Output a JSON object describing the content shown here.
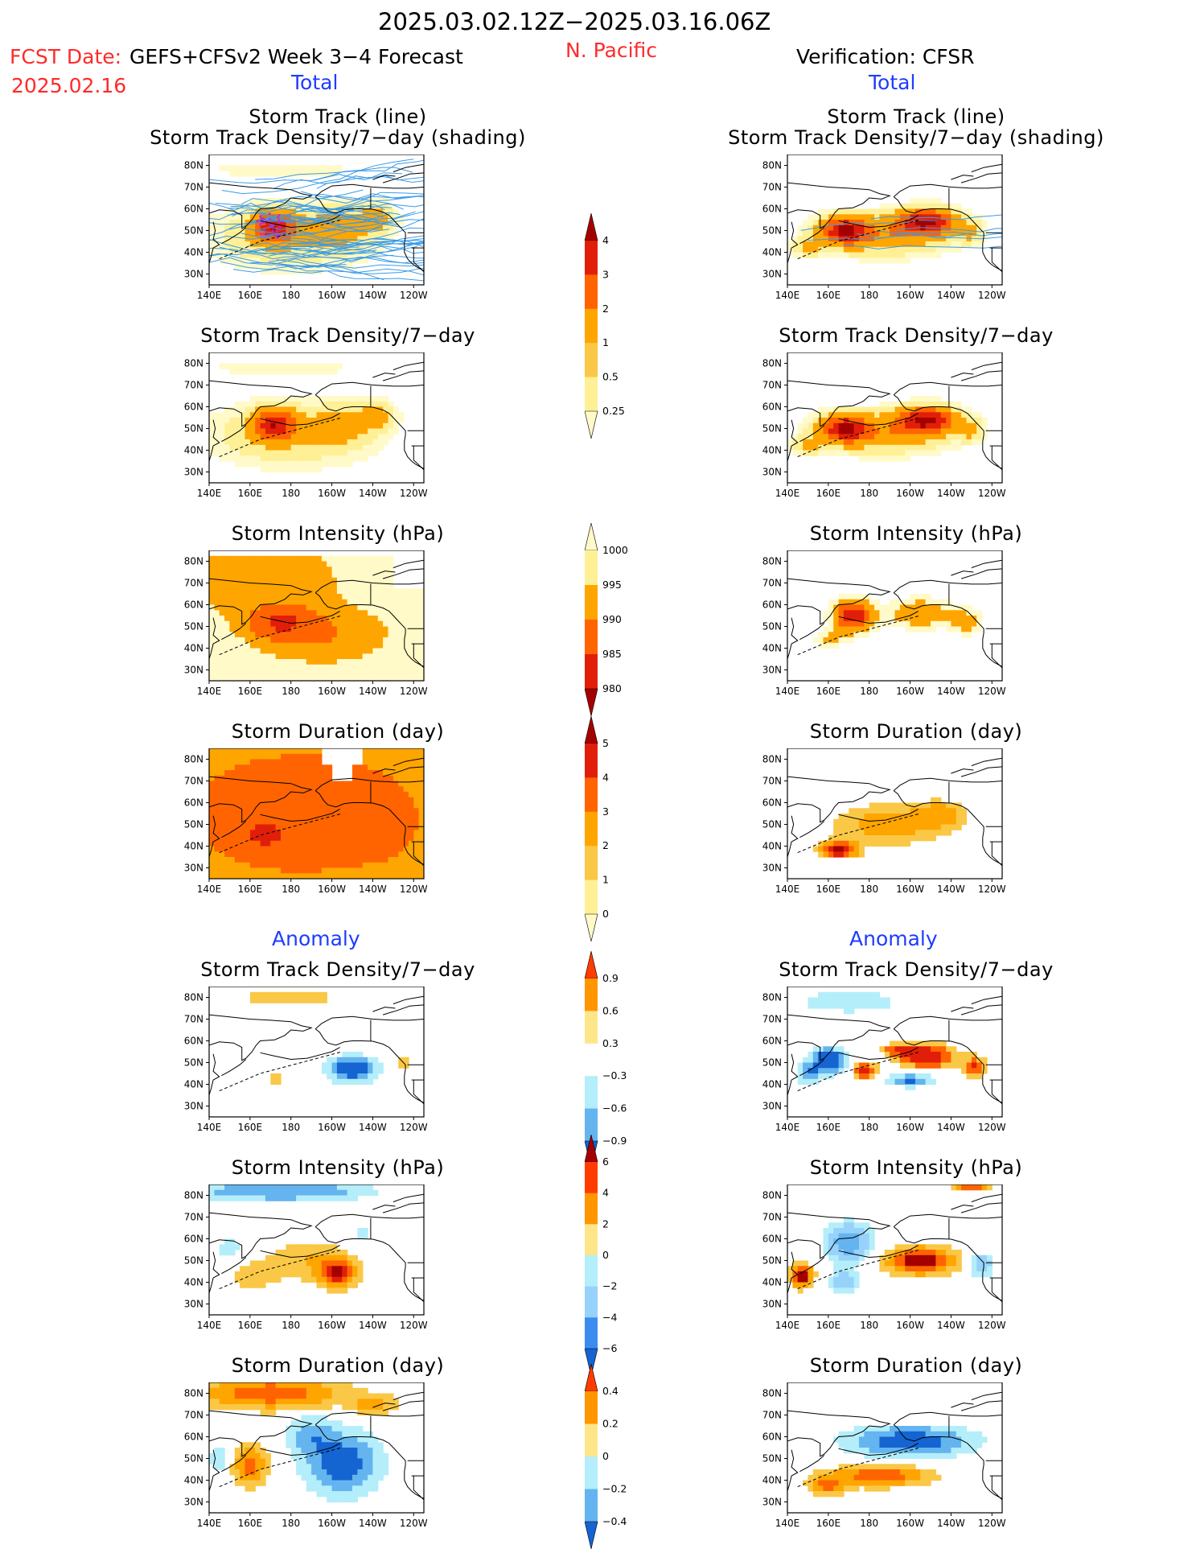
{
  "header": {
    "date_range": "2025.03.02.12Z−2025.03.16.06Z",
    "fcst_label": "FCST Date:",
    "model_label": "GEFS+CFSv2 Week 3−4 Forecast",
    "fcst_date": "2025.02.16",
    "region": "N. Pacific",
    "verification": "Verification: CFSR",
    "total_left": "Total",
    "total_right": "Total",
    "anomaly_left": "Anomaly",
    "anomaly_right": "Anomaly"
  },
  "axes": {
    "lat_labels": [
      "80N",
      "70N",
      "60N",
      "50N",
      "40N",
      "30N"
    ],
    "lon_labels": [
      "140E",
      "160E",
      "180",
      "160W",
      "140W",
      "120W"
    ]
  },
  "panels": {
    "left": [
      {
        "title1": "Storm Track (line)",
        "title2": "Storm Track Density/7−day (shading)",
        "field": "density_fc",
        "tracks": true
      },
      {
        "title1": "",
        "title2": "Storm Track Density/7−day",
        "field": "density_fc"
      },
      {
        "title1": "",
        "title2": "Storm Intensity (hPa)",
        "field": "intensity_fc"
      },
      {
        "title1": "",
        "title2": "Storm Duration (day)",
        "field": "duration_fc"
      },
      {
        "title1": "",
        "title2": "Storm Track Density/7−day",
        "field": "density_anom_fc"
      },
      {
        "title1": "",
        "title2": "Storm Intensity (hPa)",
        "field": "intensity_anom_fc"
      },
      {
        "title1": "",
        "title2": "Storm Duration (day)",
        "field": "duration_anom_fc"
      }
    ],
    "right": [
      {
        "title1": "Storm Track (line)",
        "title2": "Storm Track Density/7−day (shading)",
        "field": "density_obs",
        "tracks": true
      },
      {
        "title1": "",
        "title2": "Storm Track Density/7−day",
        "field": "density_obs"
      },
      {
        "title1": "",
        "title2": "Storm Intensity (hPa)",
        "field": "intensity_obs"
      },
      {
        "title1": "",
        "title2": "Storm Duration (day)",
        "field": "duration_obs"
      },
      {
        "title1": "",
        "title2": "Storm Track Density/7−day",
        "field": "density_anom_obs"
      },
      {
        "title1": "",
        "title2": "Storm Intensity (hPa)",
        "field": "intensity_anom_obs"
      },
      {
        "title1": "",
        "title2": "Storm Duration (day)",
        "field": "duration_anom_obs"
      }
    ]
  },
  "colorbars": [
    {
      "name": "density",
      "labels": [
        "4",
        "3",
        "2",
        "1",
        "0.5",
        "0.25"
      ],
      "colors": [
        "#a50000",
        "#e11e0a",
        "#ff6400",
        "#ffa500",
        "#fac846",
        "#fff096",
        "#fffac8"
      ]
    },
    {
      "name": "intensity",
      "labels": [
        "1000",
        "995",
        "990",
        "985",
        "980"
      ],
      "colors": [
        "#fffac8",
        "#fff096",
        "#ffa500",
        "#ff6400",
        "#e11e0a",
        "#a50000"
      ]
    },
    {
      "name": "duration",
      "labels": [
        "5",
        "4",
        "3",
        "2",
        "1",
        "0"
      ],
      "colors": [
        "#a50000",
        "#e11e0a",
        "#ff6400",
        "#ffa500",
        "#fac846",
        "#fff096",
        "#fffac8"
      ]
    },
    {
      "name": "density_anom",
      "labels": [
        "0.9",
        "0.6",
        "0.3",
        "−0.3",
        "−0.6",
        "−0.9"
      ],
      "colors": [
        "#ff3c00",
        "#ff9600",
        "#fde68a",
        "#ffffff",
        "#b4eefa",
        "#64b4f0",
        "#1464d2"
      ]
    },
    {
      "name": "intensity_anom",
      "labels": [
        "6",
        "4",
        "2",
        "0",
        "−2",
        "−4",
        "−6"
      ],
      "colors": [
        "#a50000",
        "#ff3c00",
        "#ff9600",
        "#fde68a",
        "#b4eefa",
        "#96d2fa",
        "#3c8cf0",
        "#1464d2"
      ]
    },
    {
      "name": "duration_anom",
      "labels": [
        "0.4",
        "0.2",
        "0",
        "−0.2",
        "−0.4"
      ],
      "colors": [
        "#ff3c00",
        "#ff9600",
        "#fde68a",
        "#b4eefa",
        "#64b4f0",
        "#1464d2"
      ]
    }
  ],
  "colors": {
    "title_red": "#ff2a2a",
    "title_blue": "#1e3cff",
    "track_line": "#3c9be6"
  }
}
